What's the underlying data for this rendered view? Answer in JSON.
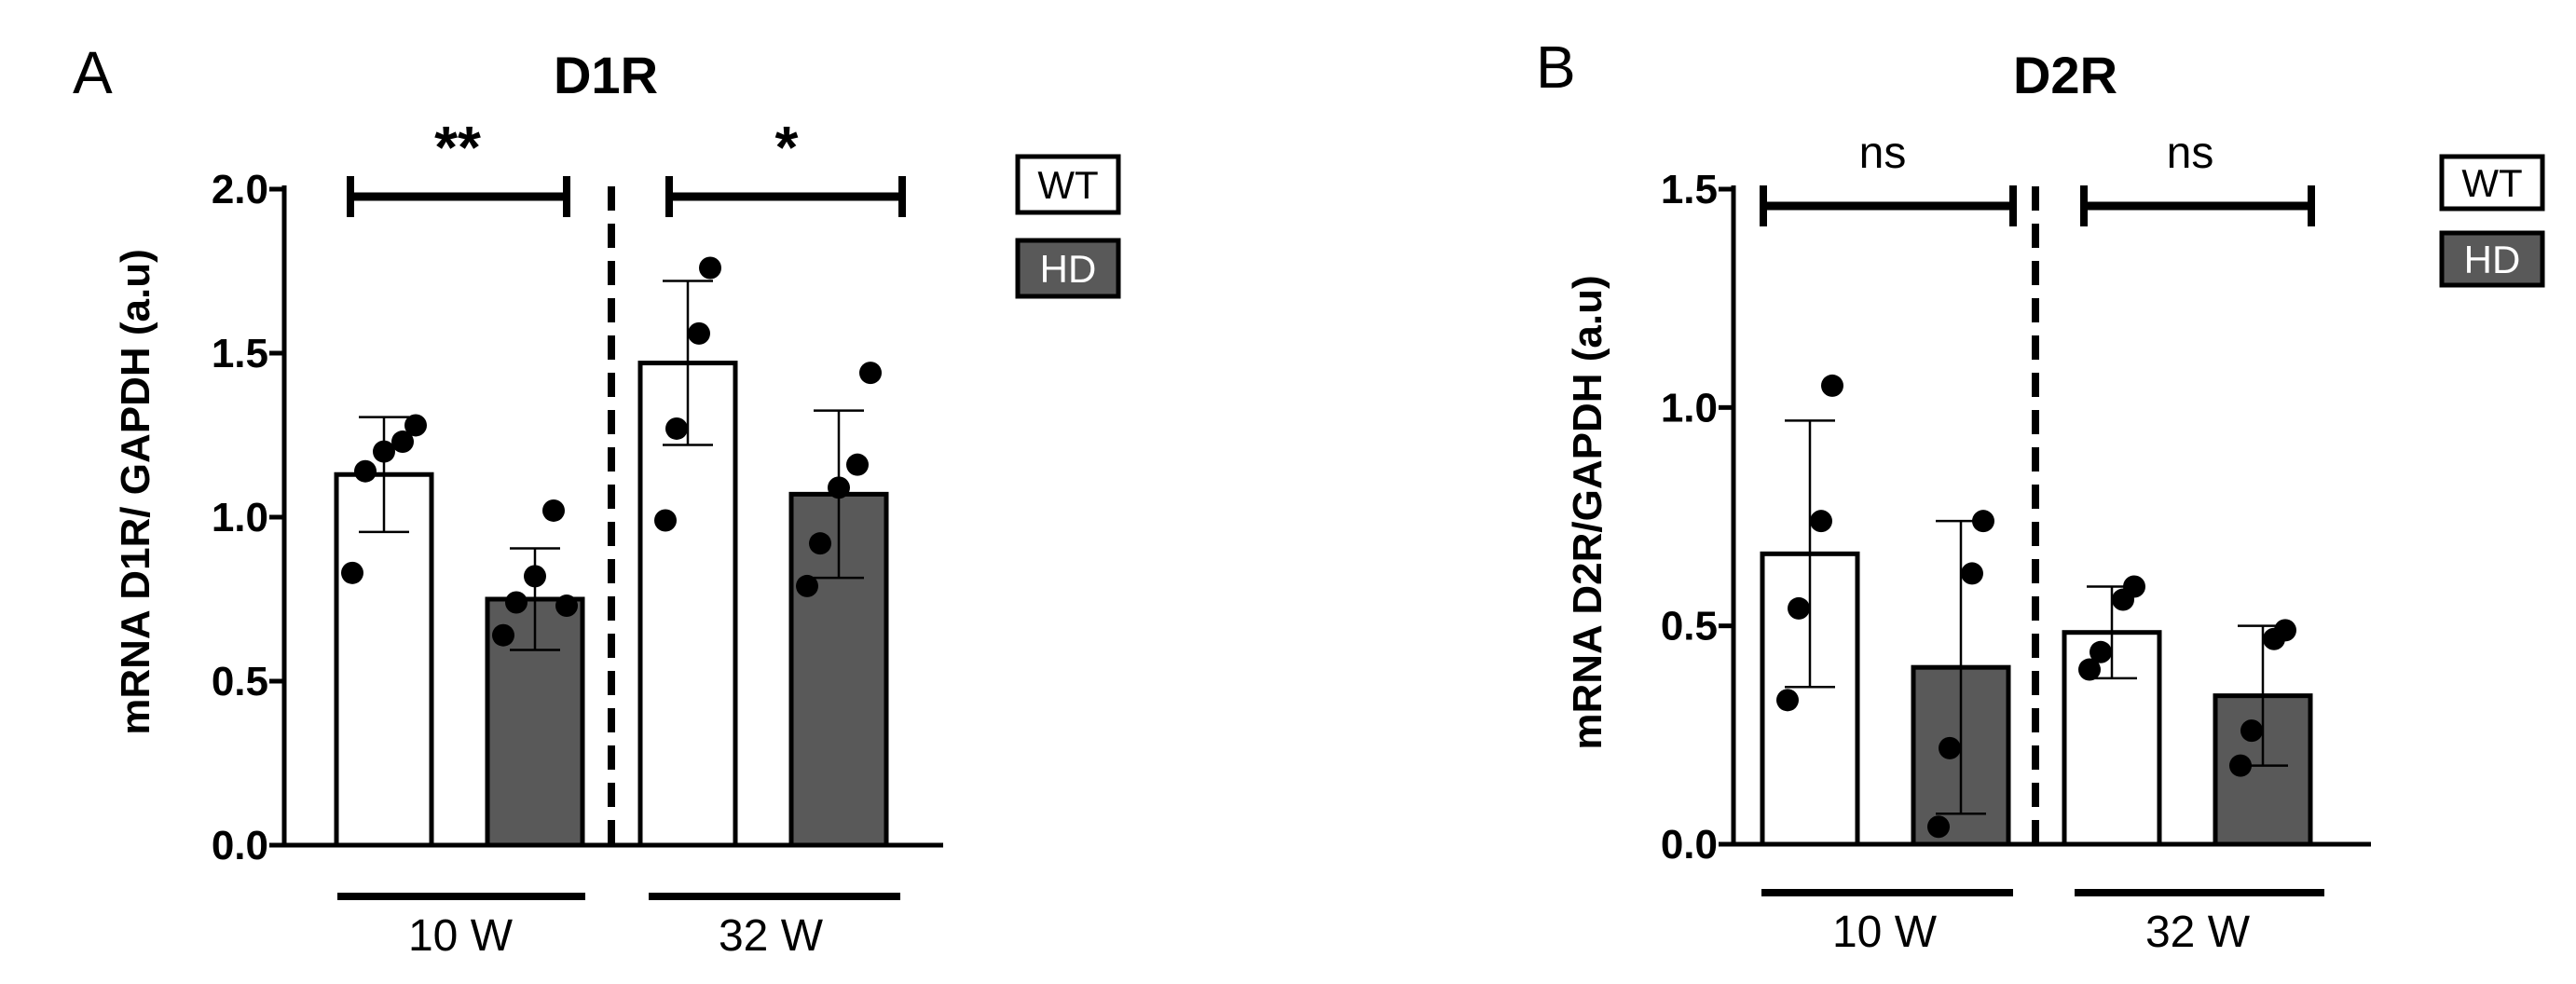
{
  "figure": {
    "panels": [
      {
        "panel_letter": "A",
        "title": "D1R",
        "ylabel": "mRNA D1R/ GAPDH (a.u)",
        "group_labels": [
          "10 W",
          "32 W"
        ],
        "significance": [
          "**",
          "*"
        ]
      },
      {
        "panel_letter": "B",
        "title": "D2R",
        "ylabel": "mRNA D2R/GAPDH (a.u)",
        "group_labels": [
          "10 W",
          "32 W"
        ],
        "significance": [
          "ns",
          "ns"
        ]
      }
    ]
  },
  "chart_data": [
    {
      "type": "bar",
      "title": "D1R",
      "panel": "A",
      "xlabel": "",
      "ylabel": "mRNA D1R/ GAPDH (a.u)",
      "ylim": [
        0,
        2.0
      ],
      "yticks": [
        "0.0",
        "0.5",
        "1.0",
        "1.5",
        "2.0"
      ],
      "categories": [
        "10 W",
        "32 W"
      ],
      "legend": {
        "position": "top-right",
        "entries": [
          "WT",
          "HD"
        ]
      },
      "series": [
        {
          "name": "WT",
          "color": "#ffffff",
          "values": [
            1.13,
            1.47
          ],
          "sd": [
            0.175,
            0.25
          ],
          "points": [
            [
              0.83,
              1.14,
              1.2,
              1.23,
              1.28
            ],
            [
              0.99,
              1.27,
              1.56,
              1.76
            ]
          ]
        },
        {
          "name": "HD",
          "color": "#595959",
          "values": [
            0.75,
            1.07
          ],
          "sd": [
            0.155,
            0.255
          ],
          "points": [
            [
              0.64,
              0.74,
              0.82,
              1.02,
              0.73
            ],
            [
              0.79,
              0.92,
              1.09,
              1.16,
              1.44
            ]
          ]
        }
      ],
      "significance": [
        {
          "group": "10 W",
          "label": "**"
        },
        {
          "group": "32 W",
          "label": "*"
        }
      ]
    },
    {
      "type": "bar",
      "title": "D2R",
      "panel": "B",
      "xlabel": "",
      "ylabel": "mRNA D2R/GAPDH (a.u)",
      "ylim": [
        0,
        1.5
      ],
      "yticks": [
        "0.0",
        "0.5",
        "1.0",
        "1.5"
      ],
      "categories": [
        "10 W",
        "32 W"
      ],
      "legend": {
        "position": "top-right",
        "entries": [
          "WT",
          "HD"
        ]
      },
      "series": [
        {
          "name": "WT",
          "color": "#ffffff",
          "values": [
            0.665,
            0.485
          ],
          "sd": [
            0.305,
            0.105
          ],
          "points": [
            [
              0.33,
              0.54,
              0.74,
              1.05
            ],
            [
              0.4,
              0.44,
              0.56,
              0.59
            ]
          ]
        },
        {
          "name": "HD",
          "color": "#595959",
          "values": [
            0.405,
            0.34
          ],
          "sd": [
            0.335,
            0.16
          ],
          "points": [
            [
              0.04,
              0.22,
              0.62,
              0.74
            ],
            [
              0.18,
              0.26,
              0.47,
              0.49
            ]
          ]
        }
      ],
      "significance": [
        {
          "group": "10 W",
          "label": "ns"
        },
        {
          "group": "32 W",
          "label": "ns"
        }
      ]
    }
  ]
}
